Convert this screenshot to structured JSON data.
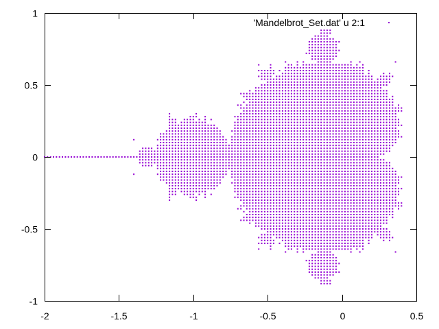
{
  "chart_data": {
    "type": "scatter",
    "title": "",
    "xlabel": "",
    "ylabel": "",
    "xlim": [
      -2,
      0.5
    ],
    "ylim": [
      -1,
      1
    ],
    "xticks": [
      -2,
      -1.5,
      -1,
      -0.5,
      0,
      0.5
    ],
    "xtick_labels": [
      "-2",
      "-1.5",
      "-1",
      "-0.5",
      "0",
      "0.5"
    ],
    "yticks": [
      -1,
      -0.5,
      0,
      0.5,
      1
    ],
    "ytick_labels": [
      "-1",
      "-0.5",
      "0",
      "0.5",
      "1"
    ],
    "grid": false,
    "legend_placement": "top-right",
    "series": [
      {
        "name": "'Mandelbrot_Set.dat' u 2:1",
        "color": "#9400d3",
        "marker": "dot",
        "source": "mandelbrot",
        "x_range": [
          -2,
          0.4
        ],
        "y_range": [
          -0.9,
          0.9
        ],
        "step": 0.02,
        "max_iterations": 40,
        "x_values": [
          -2.0,
          -1.98,
          -1.96,
          -1.94,
          -1.92,
          -1.9,
          -1.88,
          -1.86,
          -1.84,
          -1.82,
          -1.8,
          -1.78,
          -1.76,
          -1.74,
          -1.72,
          -1.7,
          -1.68,
          -1.66,
          -1.64,
          -1.62,
          -1.6,
          -1.58,
          -1.56,
          -1.54,
          -1.52,
          -1.5,
          -1.48,
          -1.46,
          -1.44,
          -1.42,
          -1.4,
          -1.38,
          -1.36,
          -1.34,
          -1.32,
          -1.3,
          -1.28,
          -1.26,
          -1.24,
          -1.22,
          -1.2,
          -1.18,
          -1.16,
          -1.14,
          -1.12,
          -1.1,
          -1.08,
          -1.06,
          -1.04,
          -1.02,
          -1.0,
          -0.98,
          -0.96,
          -0.94,
          -0.92,
          -0.9,
          -0.88,
          -0.86,
          -0.84,
          -0.82,
          -0.8,
          -0.78,
          -0.76,
          -0.74,
          -0.72,
          -0.7,
          -0.68,
          -0.66,
          -0.64,
          -0.62,
          -0.6,
          -0.58,
          -0.56,
          -0.54,
          -0.52,
          -0.5,
          -0.48,
          -0.46,
          -0.44,
          -0.42,
          -0.4,
          -0.38,
          -0.36,
          -0.34,
          -0.32,
          -0.3,
          -0.28,
          -0.26,
          -0.24,
          -0.22,
          -0.2,
          -0.18,
          -0.16,
          -0.14,
          -0.12,
          -0.1,
          -0.08,
          -0.06,
          -0.04,
          -0.02,
          0.0,
          0.02,
          0.04,
          0.06,
          0.08,
          0.1,
          0.12,
          0.14,
          0.16,
          0.18,
          0.2,
          0.22,
          0.24,
          0.26,
          0.28,
          0.3,
          0.32,
          0.34,
          0.36,
          0.38,
          0.4
        ]
      }
    ]
  }
}
